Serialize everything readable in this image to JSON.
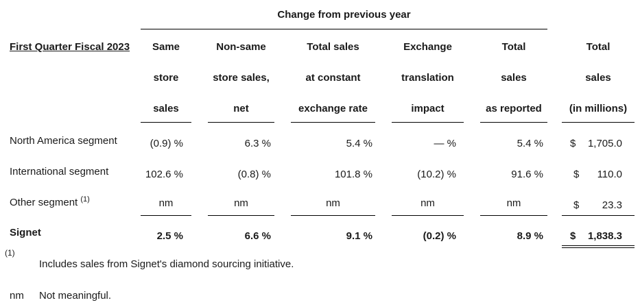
{
  "table": {
    "super_header": "Change from previous year",
    "period_label": "First Quarter Fiscal 2023",
    "columns": [
      {
        "lines": [
          "Same",
          "store",
          "sales"
        ]
      },
      {
        "lines": [
          "Non-same",
          "store sales,",
          "net"
        ]
      },
      {
        "lines": [
          "Total sales",
          "at constant",
          "exchange rate"
        ]
      },
      {
        "lines": [
          "Exchange",
          "translation",
          "impact"
        ]
      },
      {
        "lines": [
          "Total",
          "sales",
          "as reported"
        ]
      },
      {
        "lines": [
          "Total",
          "sales",
          "(in millions)"
        ]
      }
    ],
    "rows": [
      {
        "label": "North America segment",
        "note": "",
        "cells": [
          "(0.9) %",
          "6.3 %",
          "5.4 %",
          "— %",
          "5.4 %"
        ],
        "currency": "$",
        "amount": "1,705.0"
      },
      {
        "label": "International segment",
        "note": "",
        "cells": [
          "102.6 %",
          "(0.8) %",
          "101.8 %",
          "(10.2) %",
          "91.6 %"
        ],
        "currency": "$",
        "amount": "110.0"
      },
      {
        "label": "Other segment",
        "note": "(1)",
        "cells": [
          "nm",
          "nm",
          "nm",
          "nm",
          "nm"
        ],
        "currency": "$",
        "amount": "23.3"
      },
      {
        "label": "Signet",
        "note": "",
        "cells": [
          "2.5 %",
          "6.6 %",
          "9.1 %",
          "(0.2) %",
          "8.9 %"
        ],
        "currency": "$",
        "amount": "1,838.3"
      }
    ]
  },
  "footnotes": [
    {
      "marker": "(1)",
      "text": "Includes sales from Signet's diamond sourcing initiative."
    },
    {
      "marker": "nm",
      "text": "Not meaningful."
    }
  ]
}
